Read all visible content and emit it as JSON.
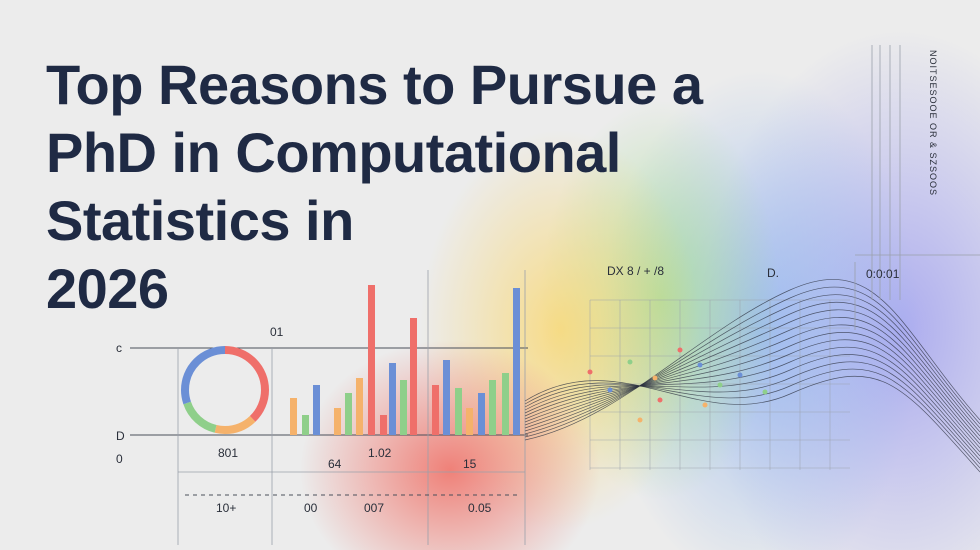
{
  "title": {
    "lines": [
      "Top Reasons to Pursue a",
      "PhD in Computational",
      "Statistics in",
      "2026"
    ]
  },
  "labels": [
    "01",
    "c",
    "D",
    "0",
    "801",
    "64",
    "1.02",
    "15",
    "10+",
    "00",
    "007",
    "0.05",
    "DX 8 / + /8",
    "D.",
    "0:0:01",
    "NOITSESOOE OR & SZSOOS"
  ]
}
